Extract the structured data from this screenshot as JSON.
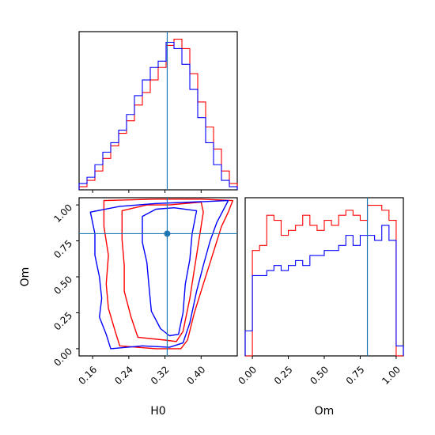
{
  "chart_data": {
    "type": "corner",
    "parameters": [
      "H0",
      "Om"
    ],
    "truths": {
      "H0": 0.325,
      "Om": 0.8
    },
    "colors": {
      "red": "#ff0000",
      "blue": "#0000ff",
      "truth": "#1f77b4"
    },
    "axes": {
      "H0": {
        "label": "H0",
        "range": [
          0.13,
          0.48
        ],
        "ticks": [
          "0.16",
          "0.24",
          "0.32",
          "0.40"
        ]
      },
      "Om": {
        "label": "Om",
        "range": [
          -0.05,
          1.05
        ],
        "ticks": [
          "0.00",
          "0.25",
          "0.50",
          "0.75",
          "1.00"
        ]
      }
    },
    "hist_H0": {
      "edges": [
        0.13,
        0.1475,
        0.165,
        0.1825,
        0.2,
        0.2175,
        0.235,
        0.2525,
        0.27,
        0.2875,
        0.305,
        0.3225,
        0.34,
        0.3575,
        0.375,
        0.3925,
        0.41,
        0.4275,
        0.445,
        0.4625,
        0.48
      ],
      "series": [
        {
          "color": "red",
          "values": [
            1,
            3,
            6,
            10,
            14,
            18,
            22,
            27,
            31,
            35,
            39,
            46,
            48,
            45,
            37,
            28,
            20,
            13,
            6,
            2
          ]
        },
        {
          "color": "blue",
          "values": [
            2,
            4,
            8,
            12,
            15,
            19,
            24,
            30,
            35,
            39,
            41,
            47,
            45,
            40,
            32,
            23,
            15,
            8,
            3,
            1
          ]
        }
      ]
    },
    "hist_Om": {
      "edges": [
        -0.05,
        0.0,
        0.05,
        0.1,
        0.15,
        0.2,
        0.25,
        0.3,
        0.35,
        0.4,
        0.45,
        0.5,
        0.55,
        0.6,
        0.65,
        0.7,
        0.75,
        0.8,
        0.85,
        0.9,
        0.95,
        1.0,
        1.05
      ],
      "series": [
        {
          "color": "red",
          "values": [
            0,
            21,
            22,
            28,
            27,
            24,
            25,
            26,
            28,
            26,
            25,
            27,
            26,
            28,
            29,
            28,
            27,
            30,
            30,
            29,
            27,
            0
          ]
        },
        {
          "color": "blue",
          "values": [
            5,
            16,
            16,
            17,
            18,
            17,
            18,
            19,
            18,
            20,
            20,
            21,
            21,
            22,
            24,
            22,
            24,
            24,
            23,
            26,
            23,
            2
          ]
        }
      ]
    },
    "contours_2d": [
      {
        "color": "red",
        "level": "inner",
        "points": [
          [
            0.225,
            0.96
          ],
          [
            0.225,
            0.76
          ],
          [
            0.23,
            0.58
          ],
          [
            0.23,
            0.4
          ],
          [
            0.245,
            0.22
          ],
          [
            0.26,
            0.08
          ],
          [
            0.32,
            0.06
          ],
          [
            0.345,
            0.05
          ],
          [
            0.36,
            0.12
          ],
          [
            0.375,
            0.35
          ],
          [
            0.385,
            0.55
          ],
          [
            0.395,
            0.75
          ],
          [
            0.405,
            0.95
          ],
          [
            0.4,
            1.02
          ],
          [
            0.33,
            1.0
          ],
          [
            0.28,
            1.0
          ]
        ]
      },
      {
        "color": "red",
        "level": "outer",
        "points": [
          [
            0.185,
            1.03
          ],
          [
            0.185,
            0.85
          ],
          [
            0.195,
            0.65
          ],
          [
            0.19,
            0.45
          ],
          [
            0.195,
            0.28
          ],
          [
            0.21,
            0.12
          ],
          [
            0.22,
            0.02
          ],
          [
            0.3,
            0.0
          ],
          [
            0.355,
            0.0
          ],
          [
            0.37,
            0.06
          ],
          [
            0.385,
            0.25
          ],
          [
            0.405,
            0.45
          ],
          [
            0.425,
            0.65
          ],
          [
            0.445,
            0.85
          ],
          [
            0.46,
            0.95
          ],
          [
            0.47,
            1.03
          ],
          [
            0.4,
            1.04
          ],
          [
            0.3,
            1.04
          ]
        ]
      },
      {
        "color": "blue",
        "level": "inner",
        "points": [
          [
            0.27,
            0.92
          ],
          [
            0.27,
            0.74
          ],
          [
            0.28,
            0.6
          ],
          [
            0.285,
            0.42
          ],
          [
            0.29,
            0.26
          ],
          [
            0.31,
            0.14
          ],
          [
            0.33,
            0.09
          ],
          [
            0.35,
            0.1
          ],
          [
            0.36,
            0.25
          ],
          [
            0.365,
            0.45
          ],
          [
            0.375,
            0.62
          ],
          [
            0.38,
            0.8
          ],
          [
            0.39,
            0.96
          ],
          [
            0.34,
            0.98
          ],
          [
            0.3,
            0.97
          ]
        ]
      },
      {
        "color": "blue",
        "level": "outer",
        "points": [
          [
            0.155,
            0.95
          ],
          [
            0.165,
            0.8
          ],
          [
            0.165,
            0.65
          ],
          [
            0.175,
            0.5
          ],
          [
            0.18,
            0.35
          ],
          [
            0.175,
            0.22
          ],
          [
            0.19,
            0.1
          ],
          [
            0.2,
            0.0
          ],
          [
            0.27,
            0.02
          ],
          [
            0.33,
            0.01
          ],
          [
            0.36,
            0.04
          ],
          [
            0.375,
            0.18
          ],
          [
            0.39,
            0.4
          ],
          [
            0.405,
            0.58
          ],
          [
            0.42,
            0.75
          ],
          [
            0.435,
            0.88
          ],
          [
            0.45,
            0.97
          ],
          [
            0.46,
            1.03
          ],
          [
            0.38,
            1.02
          ],
          [
            0.3,
            1.01
          ],
          [
            0.22,
            0.99
          ]
        ]
      }
    ]
  }
}
